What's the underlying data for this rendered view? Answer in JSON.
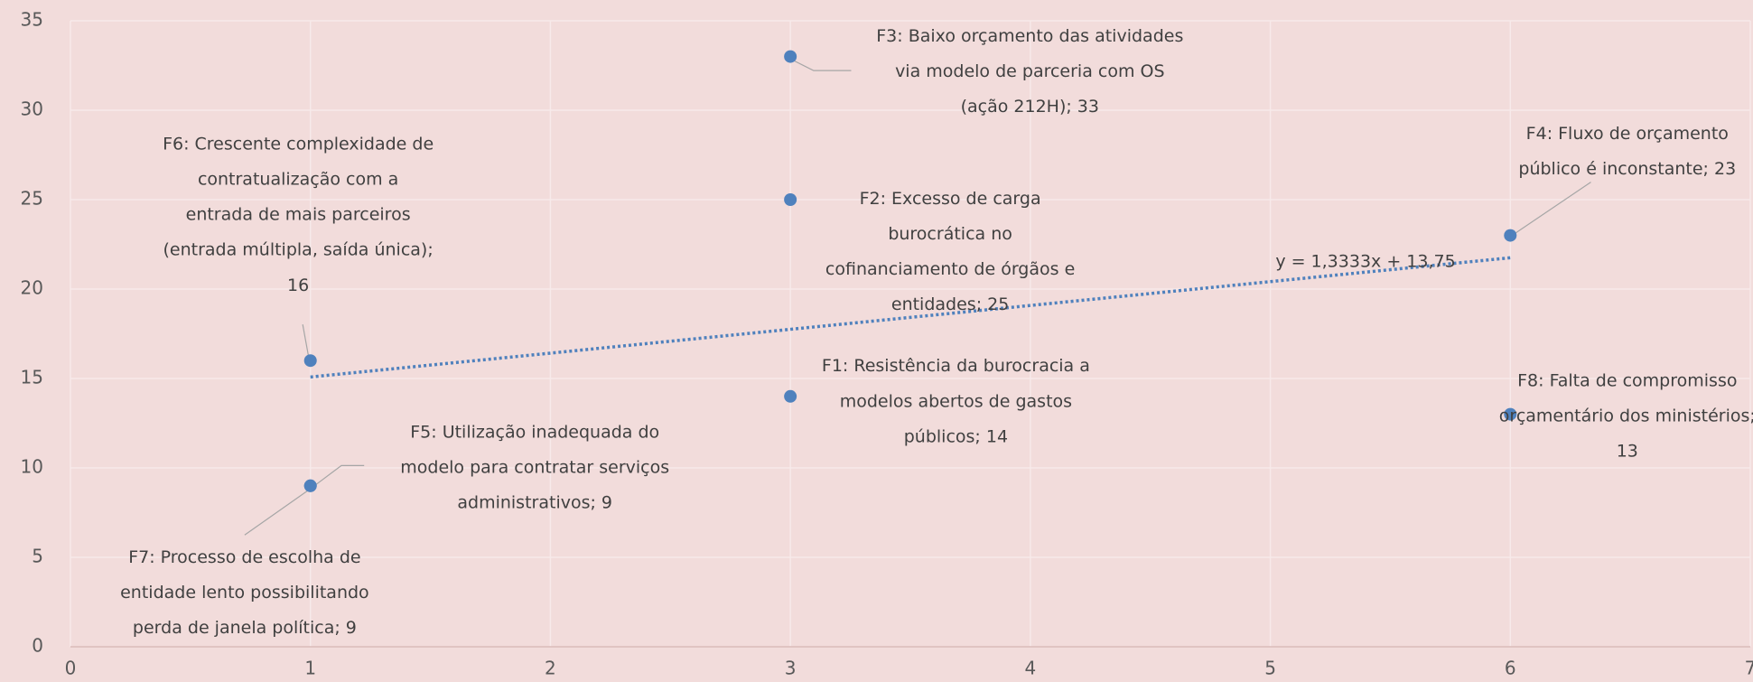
{
  "chart_data": {
    "type": "scatter",
    "x": [
      3,
      3,
      3,
      6,
      1,
      1,
      1,
      6
    ],
    "values": [
      14,
      25,
      33,
      23,
      9,
      16,
      9,
      13
    ],
    "labels": [
      [
        "F1: Resistência da burocracia a",
        "modelos abertos de gastos",
        "públicos; 14"
      ],
      [
        "F2: Excesso de carga",
        "burocrática no",
        "cofinanciamento de órgãos e",
        "entidades; 25"
      ],
      [
        "F3: Baixo orçamento das atividades",
        "via modelo de parceria com OS",
        "(ação 212H); 33"
      ],
      [
        "F4: Fluxo de orçamento",
        "público é inconstante; 23"
      ],
      [
        "F5: Utilização inadequada do",
        "modelo para contratar serviços",
        "administrativos; 9"
      ],
      [
        "F6: Crescente complexidade de",
        "contratualização com a",
        "entrada de mais parceiros",
        "(entrada múltipla, saída única);",
        "16"
      ],
      [
        "F7: Processo de escolha de",
        "entidade lento possibilitando",
        "perda de janela política; 9"
      ],
      [
        "F8: Falta de compromisso",
        "orçamentário dos ministérios;",
        "13"
      ]
    ],
    "color": "#4f81bd",
    "trendline": {
      "slope": 1.3333,
      "intercept": 13.75,
      "x_range": [
        1,
        6
      ],
      "label": "y = 1,3333x + 13,75"
    },
    "xlim": [
      0,
      7
    ],
    "xticks": [
      0,
      1,
      2,
      3,
      4,
      5,
      6,
      7
    ],
    "ylim": [
      0,
      35
    ],
    "yticks": [
      0,
      5,
      10,
      15,
      20,
      25,
      30,
      35
    ],
    "grid": true
  }
}
